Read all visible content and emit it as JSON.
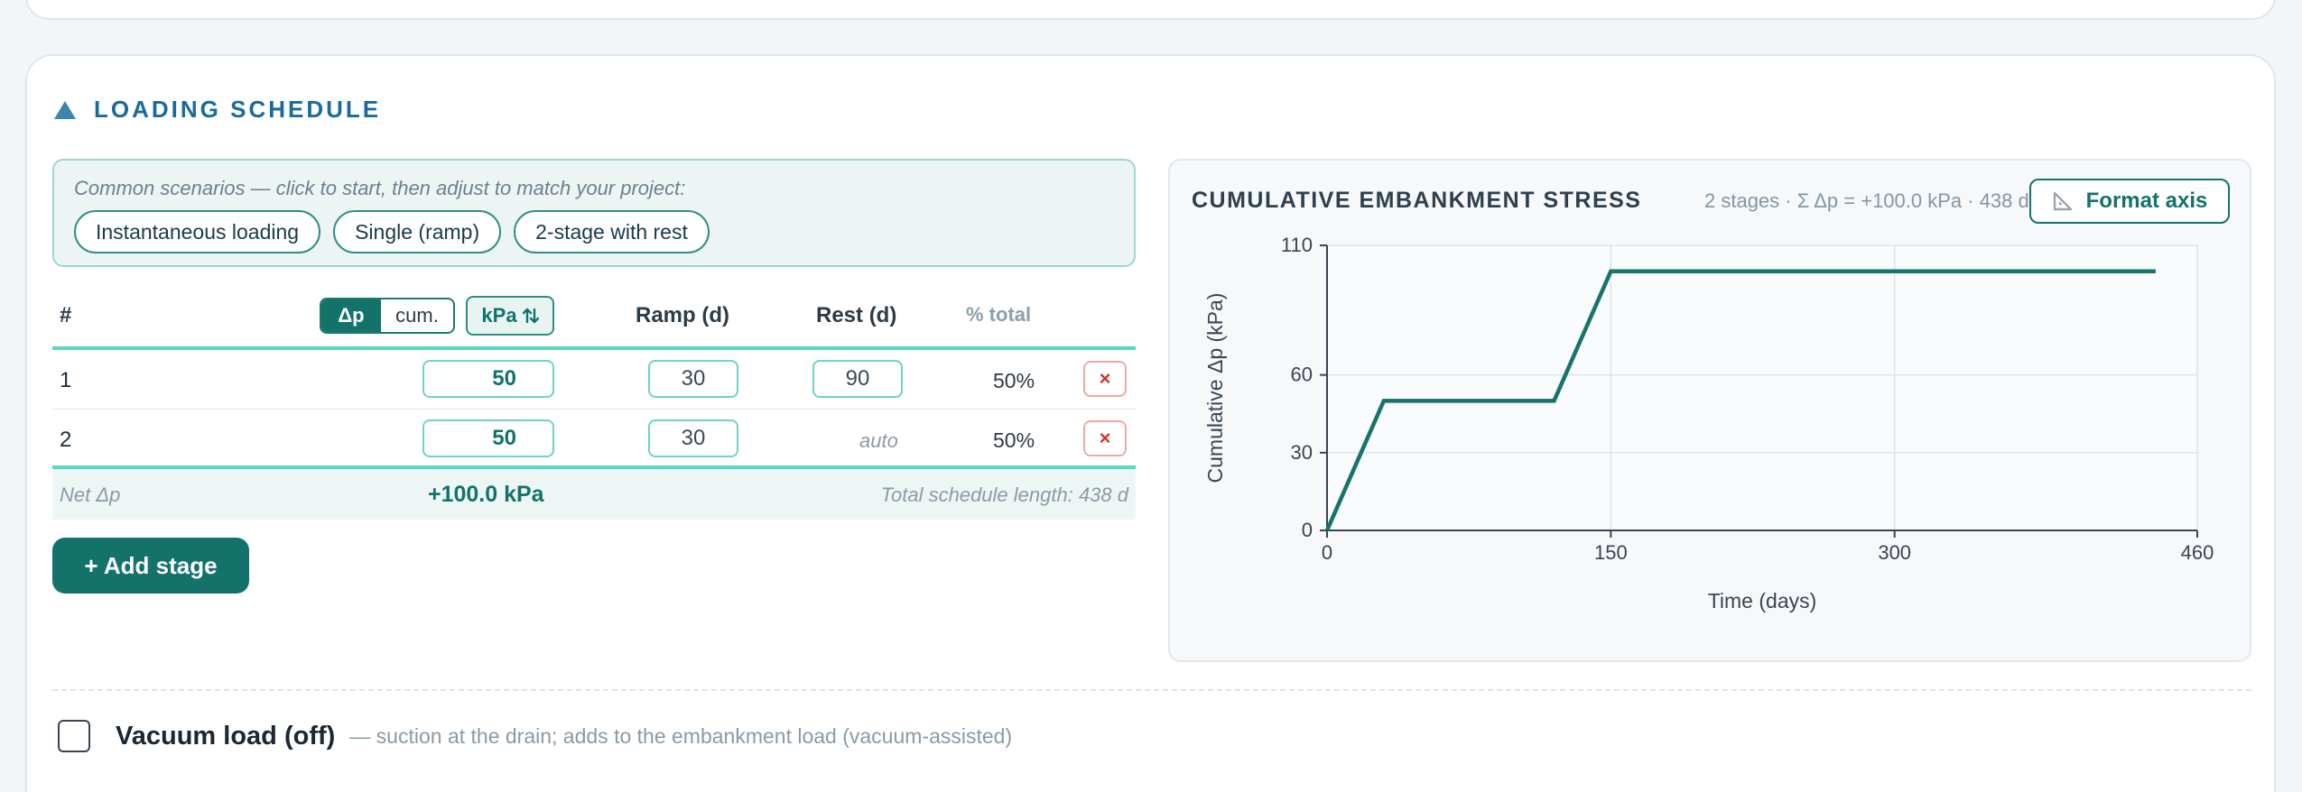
{
  "section": {
    "title": "LOADING SCHEDULE"
  },
  "scenarios": {
    "hint": "Common scenarios — click to start, then adjust to match your project:",
    "buttons": [
      "Instantaneous loading",
      "Single (ramp)",
      "2-stage with rest"
    ]
  },
  "table": {
    "headers": {
      "num": "#",
      "ramp": "Ramp (d)",
      "rest": "Rest (d)",
      "pct": "% total"
    },
    "mode_toggle": {
      "active": "Δp",
      "inactive": "cum."
    },
    "unit_button": "kPa",
    "rows": [
      {
        "num": "1",
        "load": "50",
        "ramp": "30",
        "rest": "90",
        "pct": "50%",
        "delete": "×"
      },
      {
        "num": "2",
        "load": "50",
        "ramp": "30",
        "rest": "auto",
        "pct": "50%",
        "delete": "×"
      }
    ],
    "footer": {
      "label": "Net Δp",
      "value": "+100.0 kPa",
      "length": "Total schedule length: 438 d"
    }
  },
  "add_button": "+ Add stage",
  "chart_panel": {
    "title": "CUMULATIVE EMBANKMENT STRESS",
    "summary": "2 stages · Σ Δp = +100.0 kPa · 438 d",
    "format_button": "Format axis"
  },
  "chart_data": {
    "type": "line",
    "title": "",
    "xlabel": "Time (days)",
    "ylabel": "Cumulative Δp (kPa)",
    "xlim": [
      0,
      460
    ],
    "ylim": [
      0,
      110
    ],
    "xticks": [
      0,
      150,
      300,
      460
    ],
    "yticks": [
      0,
      30,
      60,
      110
    ],
    "grid": true,
    "series": [
      {
        "x": [
          0,
          30,
          120,
          150,
          438
        ],
        "y": [
          0,
          50,
          50,
          100,
          100
        ]
      }
    ],
    "line_color": "#17746a"
  },
  "vacuum": {
    "title": "Vacuum load (off)",
    "description": "— suction at the drain; adds to the embankment load (vacuum-assisted)"
  }
}
